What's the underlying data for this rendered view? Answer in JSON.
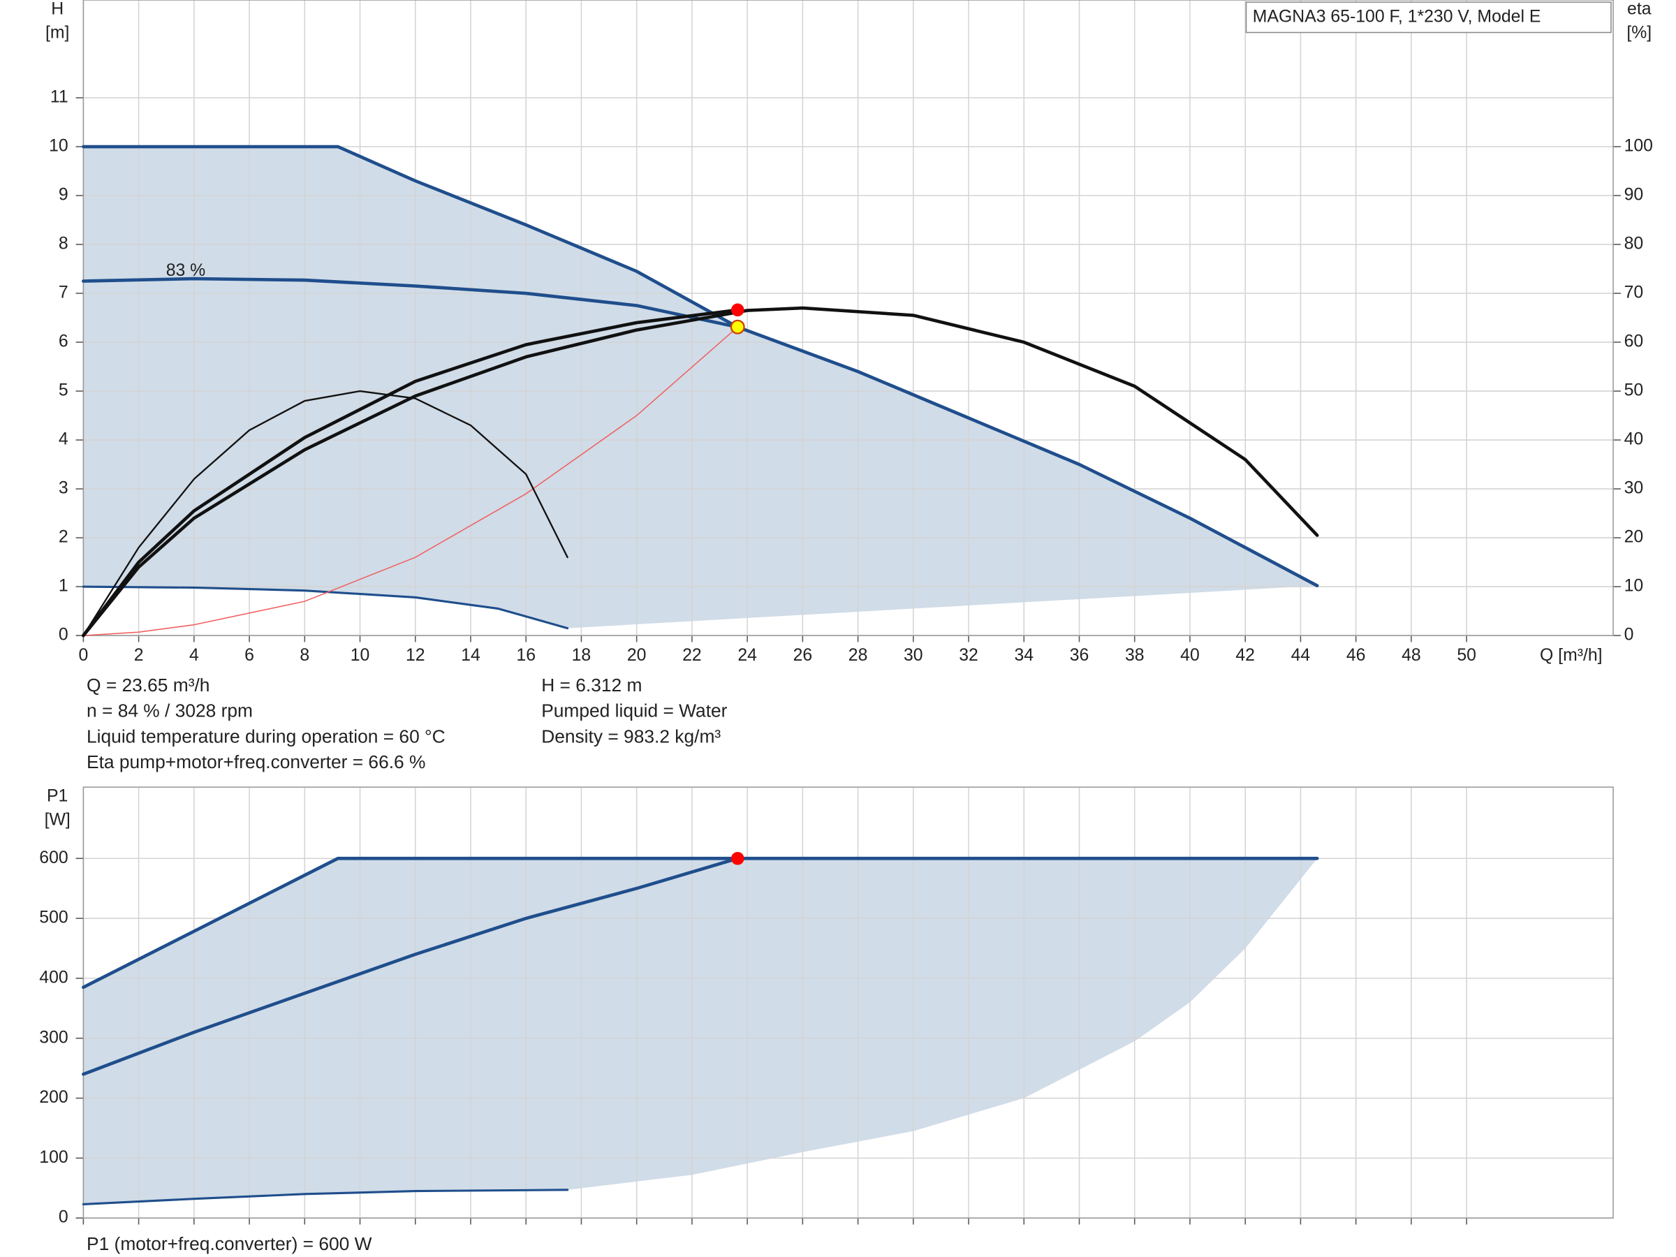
{
  "chart_data": [
    {
      "type": "line",
      "title": "MAGNA3 65-100 F, 1*230 V, Model E",
      "ylabel": [
        "H",
        "[m]"
      ],
      "y2label": [
        "eta",
        "[%]"
      ],
      "xlabel": "Q [m³/h]",
      "xlim": [
        0,
        55.3
      ],
      "xticks": [
        0,
        2,
        4,
        6,
        8,
        10,
        12,
        14,
        16,
        18,
        20,
        22,
        24,
        26,
        28,
        30,
        32,
        34,
        36,
        38,
        40,
        42,
        44,
        46,
        48,
        50
      ],
      "ylim": [
        0,
        13
      ],
      "yticks": [
        0,
        1,
        2,
        3,
        4,
        5,
        6,
        7,
        8,
        9,
        10,
        11
      ],
      "y2lim": [
        0,
        130
      ],
      "y2ticks": [
        0,
        10,
        20,
        30,
        40,
        50,
        60,
        70,
        80,
        90,
        100
      ],
      "grid": true,
      "show_xtick_labels": true,
      "region": {
        "color": "#d0dce8",
        "x": [
          0,
          9.2,
          12,
          16,
          20,
          23.65,
          28,
          32,
          36,
          40,
          44.6,
          17.5,
          15,
          12,
          8,
          4,
          0
        ],
        "y": [
          10,
          10,
          9.3,
          8.4,
          7.45,
          6.31,
          5.4,
          4.45,
          3.5,
          2.4,
          1.02,
          0.15,
          0.55,
          0.78,
          0.92,
          0.98,
          1
        ]
      },
      "series": [
        {
          "color": "#1f4e8c",
          "line_width": 3,
          "x": [
            0,
            9.2,
            12,
            16,
            20,
            23.65,
            28,
            32,
            36,
            40,
            44.6
          ],
          "values": [
            10,
            10,
            9.3,
            8.4,
            7.45,
            6.31,
            5.4,
            4.45,
            3.5,
            2.4,
            1.02
          ]
        },
        {
          "color": "#1f4e8c",
          "line_width": 3,
          "x": [
            0,
            4,
            8,
            12,
            16,
            20,
            23.65
          ],
          "values": [
            7.25,
            7.3,
            7.27,
            7.15,
            7.0,
            6.75,
            6.31
          ]
        },
        {
          "color": "#1f4e8c",
          "line_width": 2,
          "x": [
            0,
            4,
            8,
            12,
            15,
            17.5
          ],
          "values": [
            1,
            0.98,
            0.92,
            0.78,
            0.55,
            0.15
          ]
        },
        {
          "color": "#f06060",
          "line_width": 1,
          "x": [
            0,
            2,
            4,
            8,
            12,
            16,
            20,
            23.65
          ],
          "values": [
            0,
            0.07,
            0.22,
            0.7,
            1.6,
            2.9,
            4.5,
            6.31
          ]
        },
        {
          "color": "#111111",
          "line_width": 3,
          "axis": "y2",
          "x": [
            0,
            2,
            4,
            8,
            12,
            16,
            20,
            24,
            26,
            30,
            34,
            38,
            42,
            44.6
          ],
          "values": [
            0,
            14,
            24,
            38,
            49,
            57,
            62.5,
            66.5,
            67,
            65.5,
            60,
            51,
            36,
            20.5
          ]
        },
        {
          "color": "#111111",
          "line_width": 3,
          "axis": "y2",
          "x": [
            0,
            2,
            4,
            8,
            12,
            16,
            20,
            23.65
          ],
          "values": [
            0,
            15,
            25.5,
            40.5,
            52,
            59.5,
            64,
            66.6
          ]
        },
        {
          "color": "#111111",
          "line_width": 1.5,
          "axis": "y2",
          "x": [
            0,
            2,
            4,
            6,
            8,
            10,
            12,
            14,
            16,
            17.5
          ],
          "values": [
            0,
            18,
            32,
            42,
            48,
            50,
            48.5,
            43,
            33,
            16
          ]
        }
      ],
      "points": [
        {
          "x": 23.65,
          "y": 66.6,
          "axis": "y2",
          "color": "#ff0000"
        },
        {
          "x": 23.65,
          "y": 6.312,
          "color": "#ffff00"
        }
      ],
      "annotations": [
        {
          "text": "83 %",
          "x": 3.7,
          "y": 7.45
        }
      ],
      "notes_left": [
        "Q = 23.65 m³/h",
        "n = 84 % / 3028 rpm",
        "Liquid temperature during operation = 60 °C",
        "Eta pump+motor+freq.converter = 66.6 %"
      ],
      "notes_right": [
        "H = 6.312 m",
        "Pumped liquid = Water",
        "Density = 983.2 kg/m³"
      ]
    },
    {
      "type": "line",
      "ylabel": [
        "P1",
        "[W]"
      ],
      "xlim": [
        0,
        55.3
      ],
      "xticks": [
        0,
        2,
        4,
        6,
        8,
        10,
        12,
        14,
        16,
        18,
        20,
        22,
        24,
        26,
        28,
        30,
        32,
        34,
        36,
        38,
        40,
        42,
        44,
        46,
        48,
        50
      ],
      "ylim": [
        0,
        719
      ],
      "yticks": [
        0,
        100,
        200,
        300,
        400,
        500,
        600
      ],
      "grid": true,
      "show_xtick_labels": false,
      "region": {
        "color": "#d0dce8",
        "x": [
          0,
          9.2,
          44.6,
          42,
          40,
          38,
          34,
          30,
          26,
          22,
          17.5,
          12,
          8,
          4,
          0
        ],
        "y": [
          385,
          600,
          600,
          450,
          360,
          295,
          200,
          145,
          110,
          72,
          47,
          45,
          40,
          32,
          23
        ]
      },
      "series": [
        {
          "color": "#1f4e8c",
          "line_width": 3,
          "x": [
            0,
            9.2,
            44.6
          ],
          "values": [
            385,
            600,
            600
          ]
        },
        {
          "color": "#1f4e8c",
          "line_width": 3,
          "x": [
            0,
            4,
            8,
            12,
            16,
            20,
            23.65
          ],
          "values": [
            240,
            310,
            375,
            440,
            500,
            550,
            600
          ]
        },
        {
          "color": "#1f4e8c",
          "line_width": 2,
          "x": [
            0,
            4,
            8,
            12,
            17.5
          ],
          "values": [
            23,
            32,
            40,
            45,
            47
          ]
        }
      ],
      "points": [
        {
          "x": 23.65,
          "y": 600,
          "color": "#ff0000"
        }
      ],
      "notes_left": [
        "P1 (motor+freq.converter) = 600 W"
      ]
    }
  ]
}
